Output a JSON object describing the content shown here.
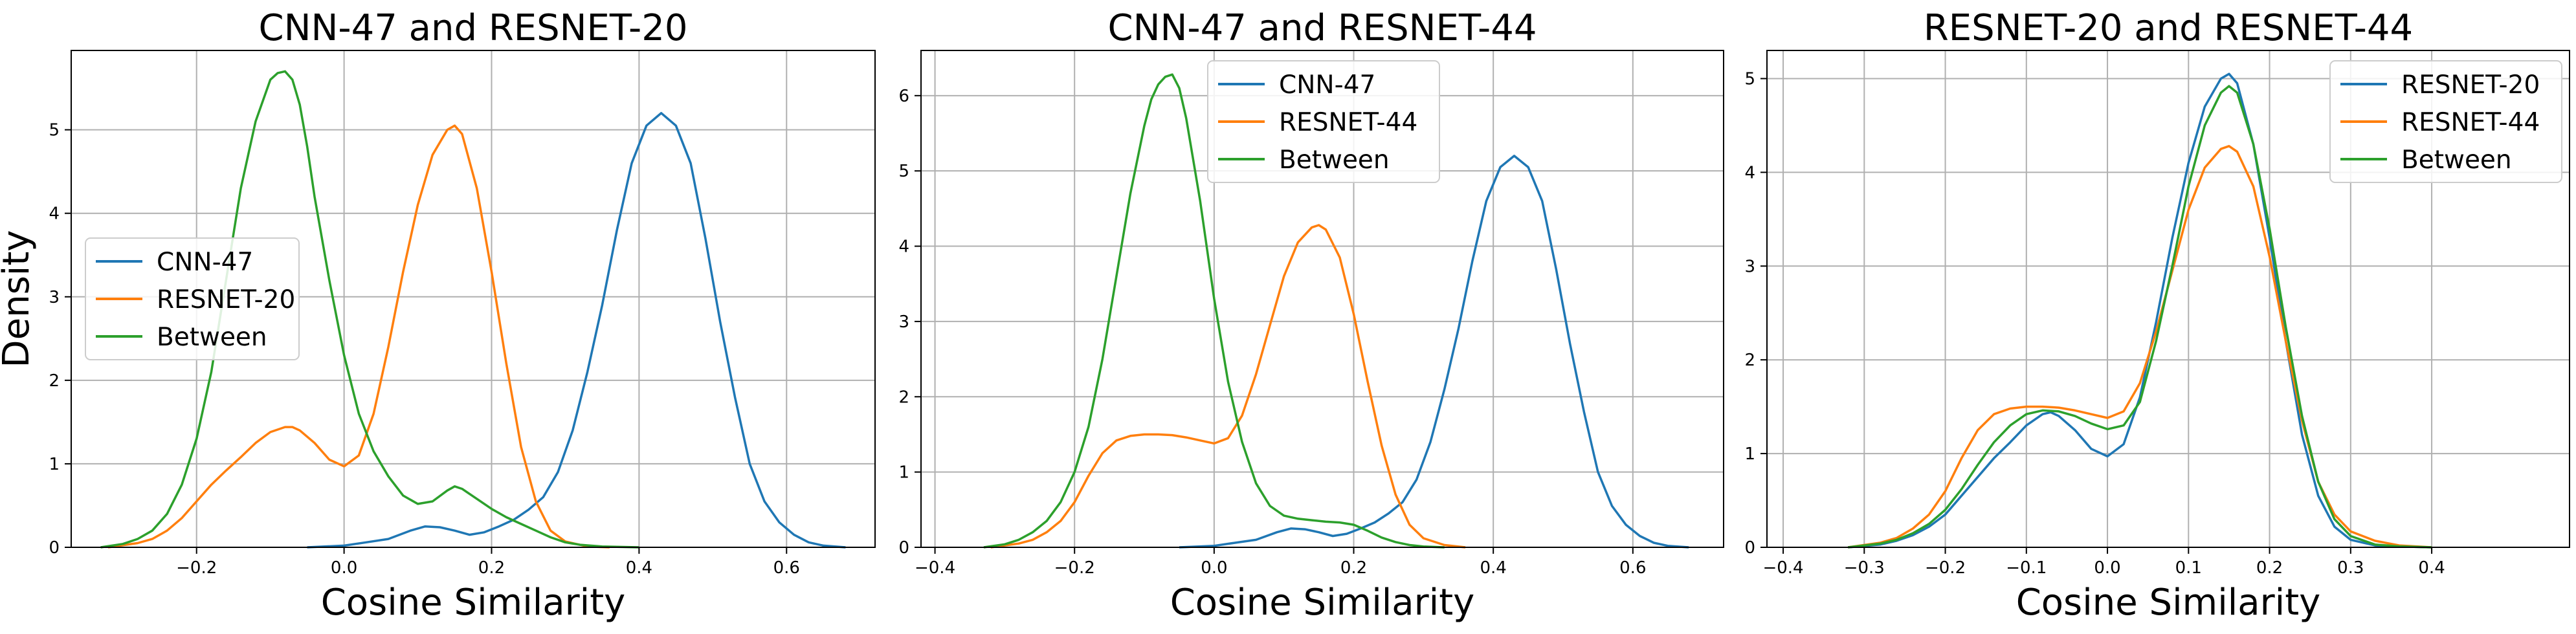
{
  "chart_data": [
    {
      "type": "line",
      "title": "CNN-47 and RESNET-20",
      "xlabel": "Cosine Similarity",
      "ylabel": "Density",
      "xlim": [
        -0.37,
        0.72
      ],
      "ylim": [
        0,
        5.95
      ],
      "xticks": [
        -0.2,
        0.0,
        0.2,
        0.4,
        0.6
      ],
      "xtick_labels": [
        "−0.2",
        "0.0",
        "0.2",
        "0.4",
        "0.6"
      ],
      "yticks": [
        0,
        1,
        2,
        3,
        4,
        5
      ],
      "ytick_labels": [
        "0",
        "1",
        "2",
        "3",
        "4",
        "5"
      ],
      "grid": true,
      "legend_position": "center-left",
      "series": [
        {
          "name": "CNN-47",
          "color": "#1f77b4",
          "x": [
            -0.05,
            0.0,
            0.03,
            0.06,
            0.09,
            0.11,
            0.13,
            0.15,
            0.17,
            0.19,
            0.21,
            0.23,
            0.25,
            0.27,
            0.29,
            0.31,
            0.33,
            0.35,
            0.37,
            0.39,
            0.41,
            0.43,
            0.45,
            0.47,
            0.49,
            0.51,
            0.53,
            0.55,
            0.57,
            0.59,
            0.61,
            0.63,
            0.65,
            0.68
          ],
          "y": [
            0,
            0.02,
            0.06,
            0.1,
            0.2,
            0.25,
            0.24,
            0.2,
            0.15,
            0.18,
            0.25,
            0.33,
            0.45,
            0.6,
            0.9,
            1.4,
            2.1,
            2.9,
            3.8,
            4.6,
            5.05,
            5.2,
            5.05,
            4.6,
            3.7,
            2.7,
            1.8,
            1.0,
            0.55,
            0.3,
            0.15,
            0.06,
            0.02,
            0
          ]
        },
        {
          "name": "RESNET-20",
          "color": "#ff7f0e",
          "x": [
            -0.32,
            -0.28,
            -0.26,
            -0.24,
            -0.22,
            -0.2,
            -0.18,
            -0.16,
            -0.14,
            -0.12,
            -0.1,
            -0.08,
            -0.07,
            -0.06,
            -0.04,
            -0.02,
            0.0,
            0.02,
            0.04,
            0.06,
            0.08,
            0.1,
            0.12,
            0.14,
            0.15,
            0.16,
            0.18,
            0.2,
            0.22,
            0.24,
            0.26,
            0.28,
            0.3,
            0.33,
            0.36
          ],
          "y": [
            0,
            0.05,
            0.1,
            0.2,
            0.35,
            0.55,
            0.75,
            0.92,
            1.08,
            1.25,
            1.38,
            1.44,
            1.44,
            1.4,
            1.25,
            1.05,
            0.97,
            1.1,
            1.6,
            2.4,
            3.3,
            4.1,
            4.7,
            5.0,
            5.05,
            4.95,
            4.3,
            3.3,
            2.2,
            1.2,
            0.55,
            0.2,
            0.07,
            0.01,
            0
          ]
        },
        {
          "name": "Between",
          "color": "#2ca02c",
          "x": [
            -0.33,
            -0.3,
            -0.28,
            -0.26,
            -0.24,
            -0.22,
            -0.2,
            -0.18,
            -0.16,
            -0.14,
            -0.12,
            -0.1,
            -0.09,
            -0.08,
            -0.07,
            -0.06,
            -0.05,
            -0.04,
            -0.02,
            0.0,
            0.02,
            0.04,
            0.06,
            0.08,
            0.1,
            0.12,
            0.14,
            0.15,
            0.16,
            0.18,
            0.2,
            0.22,
            0.24,
            0.26,
            0.28,
            0.3,
            0.32,
            0.35,
            0.4
          ],
          "y": [
            0,
            0.04,
            0.1,
            0.2,
            0.4,
            0.75,
            1.3,
            2.1,
            3.2,
            4.3,
            5.1,
            5.6,
            5.68,
            5.7,
            5.6,
            5.3,
            4.8,
            4.2,
            3.2,
            2.3,
            1.6,
            1.15,
            0.85,
            0.62,
            0.52,
            0.55,
            0.68,
            0.73,
            0.7,
            0.58,
            0.46,
            0.36,
            0.28,
            0.2,
            0.12,
            0.06,
            0.03,
            0.01,
            0
          ]
        }
      ]
    },
    {
      "type": "line",
      "title": "CNN-47 and RESNET-44",
      "xlabel": "Cosine Similarity",
      "ylabel": "",
      "xlim": [
        -0.42,
        0.73
      ],
      "ylim": [
        0,
        6.6
      ],
      "xticks": [
        -0.4,
        -0.2,
        0.0,
        0.2,
        0.4,
        0.6
      ],
      "xtick_labels": [
        "−0.4",
        "−0.2",
        "0.0",
        "0.2",
        "0.4",
        "0.6"
      ],
      "yticks": [
        0,
        1,
        2,
        3,
        4,
        5,
        6
      ],
      "ytick_labels": [
        "0",
        "1",
        "2",
        "3",
        "4",
        "5",
        "6"
      ],
      "grid": true,
      "legend_position": "upper-center",
      "series": [
        {
          "name": "CNN-47",
          "color": "#1f77b4",
          "x": [
            -0.05,
            0.0,
            0.03,
            0.06,
            0.09,
            0.11,
            0.13,
            0.15,
            0.17,
            0.19,
            0.21,
            0.23,
            0.25,
            0.27,
            0.29,
            0.31,
            0.33,
            0.35,
            0.37,
            0.39,
            0.41,
            0.43,
            0.45,
            0.47,
            0.49,
            0.51,
            0.53,
            0.55,
            0.57,
            0.59,
            0.61,
            0.63,
            0.65,
            0.68
          ],
          "y": [
            0,
            0.02,
            0.06,
            0.1,
            0.2,
            0.25,
            0.24,
            0.2,
            0.15,
            0.18,
            0.25,
            0.33,
            0.45,
            0.6,
            0.9,
            1.4,
            2.1,
            2.9,
            3.8,
            4.6,
            5.05,
            5.2,
            5.05,
            4.6,
            3.7,
            2.7,
            1.8,
            1.0,
            0.55,
            0.3,
            0.15,
            0.06,
            0.02,
            0
          ]
        },
        {
          "name": "RESNET-44",
          "color": "#ff7f0e",
          "x": [
            -0.32,
            -0.28,
            -0.26,
            -0.24,
            -0.22,
            -0.2,
            -0.18,
            -0.16,
            -0.14,
            -0.12,
            -0.1,
            -0.08,
            -0.06,
            -0.04,
            -0.02,
            0.0,
            0.02,
            0.04,
            0.06,
            0.08,
            0.1,
            0.12,
            0.14,
            0.15,
            0.16,
            0.18,
            0.2,
            0.22,
            0.24,
            0.26,
            0.28,
            0.3,
            0.33,
            0.36
          ],
          "y": [
            0,
            0.05,
            0.1,
            0.2,
            0.35,
            0.6,
            0.95,
            1.25,
            1.42,
            1.48,
            1.5,
            1.5,
            1.49,
            1.46,
            1.42,
            1.38,
            1.45,
            1.75,
            2.3,
            2.95,
            3.6,
            4.05,
            4.25,
            4.28,
            4.22,
            3.85,
            3.1,
            2.2,
            1.35,
            0.7,
            0.3,
            0.12,
            0.03,
            0
          ]
        },
        {
          "name": "Between",
          "color": "#2ca02c",
          "x": [
            -0.33,
            -0.3,
            -0.28,
            -0.26,
            -0.24,
            -0.22,
            -0.2,
            -0.18,
            -0.16,
            -0.14,
            -0.12,
            -0.1,
            -0.09,
            -0.08,
            -0.07,
            -0.06,
            -0.05,
            -0.04,
            -0.02,
            0.0,
            0.02,
            0.04,
            0.06,
            0.08,
            0.1,
            0.12,
            0.14,
            0.16,
            0.18,
            0.2,
            0.22,
            0.24,
            0.26,
            0.28,
            0.3,
            0.33
          ],
          "y": [
            0,
            0.04,
            0.1,
            0.2,
            0.35,
            0.6,
            1.0,
            1.6,
            2.5,
            3.6,
            4.7,
            5.6,
            5.95,
            6.15,
            6.25,
            6.28,
            6.1,
            5.7,
            4.6,
            3.3,
            2.2,
            1.4,
            0.85,
            0.55,
            0.42,
            0.38,
            0.36,
            0.34,
            0.33,
            0.3,
            0.22,
            0.13,
            0.07,
            0.03,
            0.01,
            0
          ]
        }
      ]
    },
    {
      "type": "line",
      "title": "RESNET-20 and RESNET-44",
      "xlabel": "Cosine Similarity",
      "ylabel": "",
      "xlim": [
        -0.42,
        0.57
      ],
      "ylim": [
        0,
        5.3
      ],
      "xticks": [
        -0.4,
        -0.3,
        -0.2,
        -0.1,
        0.0,
        0.1,
        0.2,
        0.3,
        0.4
      ],
      "xtick_labels": [
        "−0.4",
        "−0.3",
        "−0.2",
        "−0.1",
        "0.0",
        "0.1",
        "0.2",
        "0.3",
        "0.4"
      ],
      "yticks": [
        0,
        1,
        2,
        3,
        4,
        5
      ],
      "ytick_labels": [
        "0",
        "1",
        "2",
        "3",
        "4",
        "5"
      ],
      "grid": true,
      "legend_position": "upper-right",
      "series": [
        {
          "name": "RESNET-20",
          "color": "#1f77b4",
          "x": [
            -0.32,
            -0.28,
            -0.26,
            -0.24,
            -0.22,
            -0.2,
            -0.18,
            -0.16,
            -0.14,
            -0.12,
            -0.1,
            -0.08,
            -0.07,
            -0.06,
            -0.04,
            -0.02,
            0.0,
            0.02,
            0.04,
            0.06,
            0.08,
            0.1,
            0.12,
            0.14,
            0.15,
            0.16,
            0.18,
            0.2,
            0.22,
            0.24,
            0.26,
            0.28,
            0.3,
            0.33,
            0.36,
            0.4
          ],
          "y": [
            0,
            0.03,
            0.07,
            0.13,
            0.22,
            0.35,
            0.55,
            0.75,
            0.95,
            1.12,
            1.3,
            1.42,
            1.44,
            1.4,
            1.25,
            1.05,
            0.97,
            1.1,
            1.6,
            2.4,
            3.3,
            4.1,
            4.7,
            5.0,
            5.05,
            4.95,
            4.3,
            3.3,
            2.2,
            1.2,
            0.55,
            0.22,
            0.08,
            0.02,
            0.01,
            0
          ]
        },
        {
          "name": "RESNET-44",
          "color": "#ff7f0e",
          "x": [
            -0.32,
            -0.28,
            -0.26,
            -0.24,
            -0.22,
            -0.2,
            -0.18,
            -0.16,
            -0.14,
            -0.12,
            -0.1,
            -0.08,
            -0.06,
            -0.04,
            -0.02,
            0.0,
            0.02,
            0.04,
            0.06,
            0.08,
            0.1,
            0.12,
            0.14,
            0.15,
            0.16,
            0.18,
            0.2,
            0.22,
            0.24,
            0.26,
            0.28,
            0.3,
            0.33,
            0.36,
            0.4
          ],
          "y": [
            0,
            0.05,
            0.1,
            0.2,
            0.35,
            0.6,
            0.95,
            1.25,
            1.42,
            1.48,
            1.5,
            1.5,
            1.49,
            1.46,
            1.42,
            1.38,
            1.45,
            1.75,
            2.3,
            2.95,
            3.6,
            4.05,
            4.25,
            4.28,
            4.22,
            3.85,
            3.1,
            2.2,
            1.35,
            0.7,
            0.35,
            0.17,
            0.07,
            0.02,
            0
          ]
        },
        {
          "name": "Between",
          "color": "#2ca02c",
          "x": [
            -0.32,
            -0.28,
            -0.26,
            -0.24,
            -0.22,
            -0.2,
            -0.18,
            -0.16,
            -0.14,
            -0.12,
            -0.1,
            -0.08,
            -0.06,
            -0.04,
            -0.02,
            0.0,
            0.02,
            0.04,
            0.06,
            0.08,
            0.1,
            0.12,
            0.14,
            0.15,
            0.16,
            0.18,
            0.2,
            0.22,
            0.24,
            0.26,
            0.28,
            0.3,
            0.33,
            0.36,
            0.4
          ],
          "y": [
            0,
            0.04,
            0.08,
            0.15,
            0.25,
            0.4,
            0.62,
            0.88,
            1.12,
            1.3,
            1.42,
            1.46,
            1.45,
            1.4,
            1.32,
            1.26,
            1.3,
            1.55,
            2.2,
            3.0,
            3.85,
            4.5,
            4.85,
            4.92,
            4.85,
            4.3,
            3.4,
            2.35,
            1.4,
            0.7,
            0.3,
            0.12,
            0.03,
            0.01,
            0
          ]
        }
      ]
    }
  ]
}
